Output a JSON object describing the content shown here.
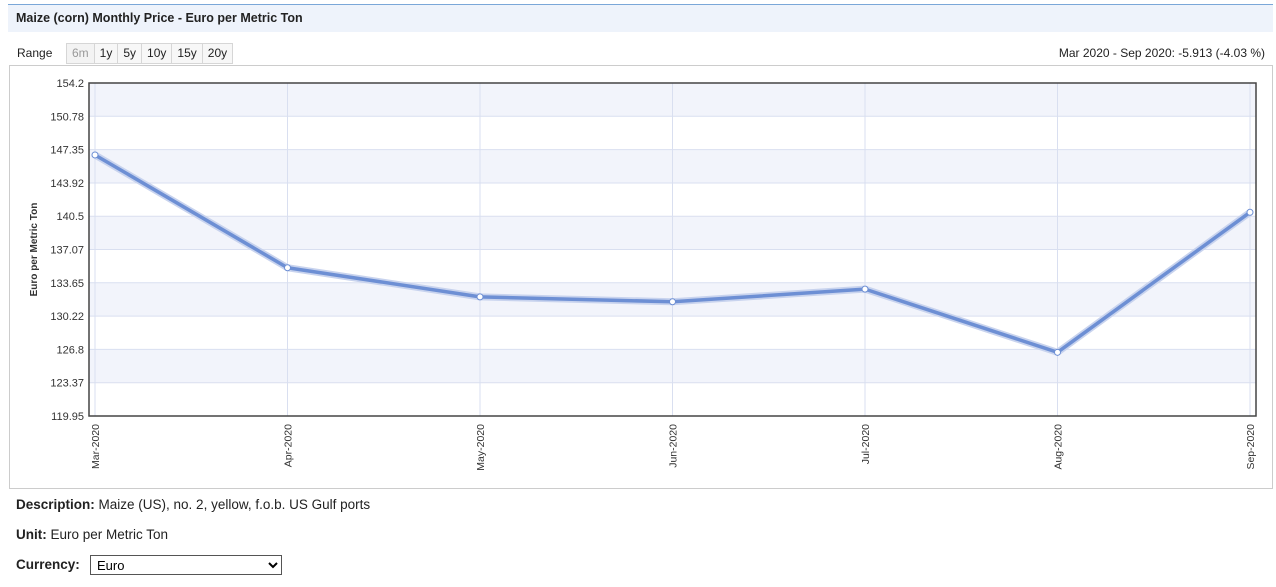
{
  "header": {
    "title": "Maize (corn) Monthly Price - Euro per Metric Ton"
  },
  "range": {
    "label": "Range",
    "buttons": [
      "6m",
      "1y",
      "5y",
      "10y",
      "15y",
      "20y"
    ],
    "active": "6m"
  },
  "change_text": "Mar 2020 - Sep 2020: -5.913 (-4.03 %)",
  "info": {
    "description_label": "Description:",
    "description_value": "Maize (US), no. 2, yellow, f.o.b. US Gulf ports",
    "unit_label": "Unit:",
    "unit_value": "Euro per Metric Ton",
    "currency_label": "Currency:",
    "currency_selected": "Euro"
  },
  "colors": {
    "line": "#6d8fd4",
    "band": "#f2f4fb",
    "grid": "#d9dff0",
    "plot_border": "#444444"
  },
  "chart_data": {
    "type": "line",
    "title": "",
    "ylabel": "Euro per Metric Ton",
    "xlabel": "",
    "categories": [
      "Mar-2020",
      "Apr-2020",
      "May-2020",
      "Jun-2020",
      "Jul-2020",
      "Aug-2020",
      "Sep-2020"
    ],
    "series": [
      {
        "values": [
          146.8,
          135.2,
          132.2,
          131.7,
          133.0,
          126.5,
          140.9
        ]
      }
    ],
    "y_ticks": [
      "154.2",
      "150.78",
      "147.35",
      "143.92",
      "140.5",
      "137.07",
      "133.65",
      "130.22",
      "126.8",
      "123.37",
      "119.95"
    ],
    "ylim": [
      119.95,
      154.2
    ],
    "grid": true,
    "alternating_bands": true
  }
}
